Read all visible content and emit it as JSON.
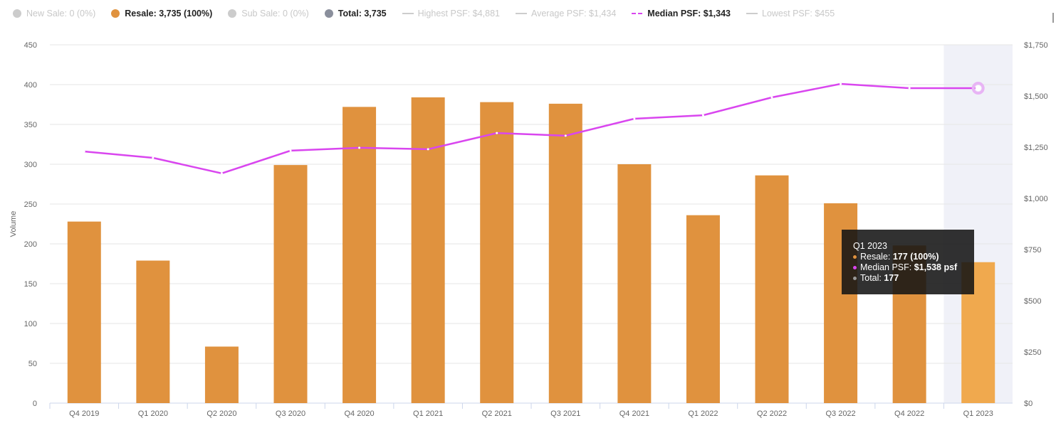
{
  "legend": [
    {
      "label": "New Sale: 0 (0%)",
      "color": "#cccccc",
      "kind": "dot",
      "active": false
    },
    {
      "label": "Resale: 3,735 (100%)",
      "color": "#e0923e",
      "kind": "dot",
      "active": true
    },
    {
      "label": "Sub Sale: 0 (0%)",
      "color": "#cccccc",
      "kind": "dot",
      "active": false
    },
    {
      "label": "Total: 3,735",
      "color": "#8a8f9c",
      "kind": "dot",
      "active": true
    },
    {
      "label": "Highest PSF: $4,881",
      "color": "#cccccc",
      "kind": "line",
      "active": false
    },
    {
      "label": "Average PSF: $1,434",
      "color": "#cccccc",
      "kind": "line",
      "active": false
    },
    {
      "label": "Median PSF: $1,343",
      "color": "#d946ef",
      "kind": "dash",
      "active": true
    },
    {
      "label": "Lowest PSF: $455",
      "color": "#cccccc",
      "kind": "line",
      "active": false
    }
  ],
  "tooltip": {
    "title": "Q1 2023",
    "resale_label": "Resale: ",
    "resale_value": "177 (100%)",
    "median_label": "Median PSF: ",
    "median_value": "$1,538 psf",
    "total_label": "Total: ",
    "total_value": "177"
  },
  "chart_data": {
    "type": "bar",
    "categories": [
      "Q4 2019",
      "Q1 2020",
      "Q2 2020",
      "Q3 2020",
      "Q4 2020",
      "Q1 2021",
      "Q2 2021",
      "Q3 2021",
      "Q4 2021",
      "Q1 2022",
      "Q2 2022",
      "Q3 2022",
      "Q4 2022",
      "Q1 2023"
    ],
    "series": [
      {
        "name": "Resale",
        "type": "bar",
        "axis": "left",
        "color": "#e0923e",
        "values": [
          228,
          179,
          71,
          299,
          372,
          384,
          378,
          376,
          300,
          236,
          286,
          251,
          198,
          177
        ]
      },
      {
        "name": "Median PSF",
        "type": "line",
        "axis": "right",
        "color": "#d946ef",
        "values": [
          1229,
          1198,
          1122,
          1233,
          1247,
          1240,
          1319,
          1306,
          1389,
          1406,
          1493,
          1559,
          1538,
          1538
        ]
      }
    ],
    "ylabel": "Volume",
    "ylim": [
      0,
      450
    ],
    "yticks": [
      0,
      50,
      100,
      150,
      200,
      250,
      300,
      350,
      400,
      450
    ],
    "y2lim": [
      0,
      1750
    ],
    "y2ticks": [
      "$0",
      "$250",
      "$500",
      "$750",
      "$1,000",
      "$1,250",
      "$1,500",
      "$1,750"
    ],
    "highlighted": "Q1 2023",
    "grid": true
  }
}
